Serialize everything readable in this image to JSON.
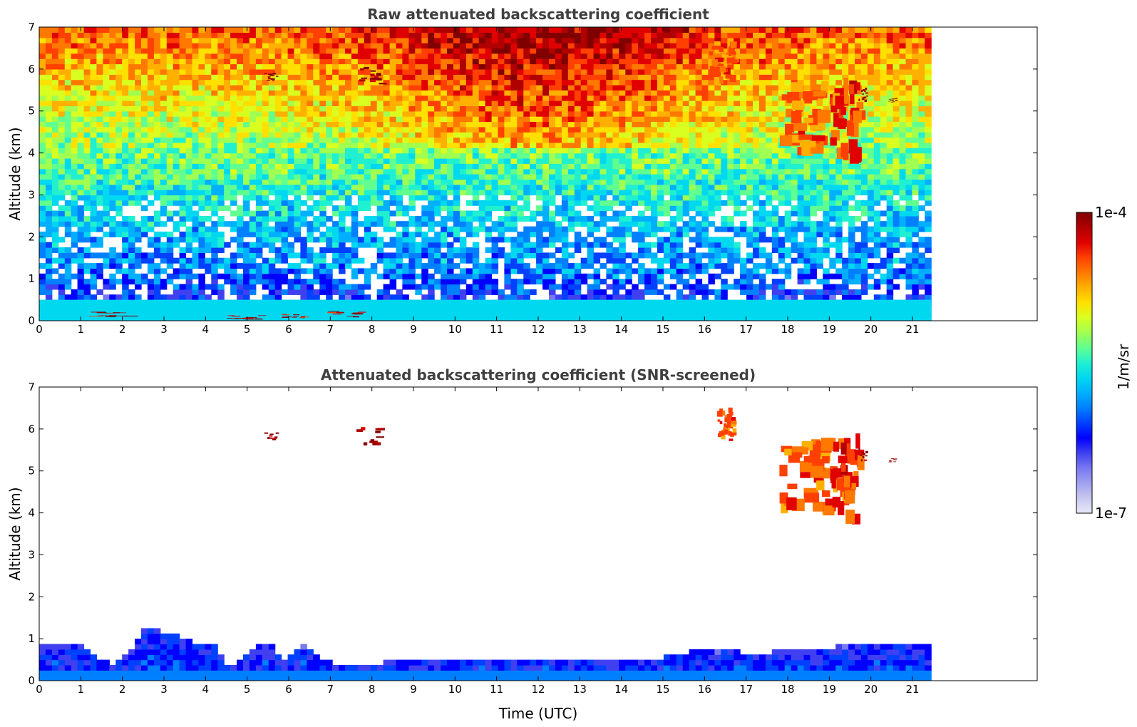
{
  "chart_data": [
    {
      "type": "heatmap",
      "title": "Raw attenuated backscattering coefficient",
      "xlabel": "",
      "ylabel": "Altitude (km)",
      "xlim": [
        0,
        24
      ],
      "ylim": [
        0,
        7
      ],
      "x_ticks": [
        0,
        1,
        2,
        3,
        4,
        5,
        6,
        7,
        8,
        9,
        10,
        11,
        12,
        13,
        14,
        15,
        16,
        17,
        18,
        19,
        20,
        21
      ],
      "y_ticks": [
        0,
        1,
        2,
        3,
        4,
        5,
        6,
        7
      ],
      "data_end_time": 21.45,
      "screened": false,
      "features": [
        {
          "kind": "boundary-layer",
          "x": [
            0,
            21.45
          ],
          "y": [
            0,
            0.5
          ],
          "value": 2e-06
        },
        {
          "kind": "low-cloud",
          "x": [
            1.1,
            2.1
          ],
          "y": [
            0.08,
            0.2
          ],
          "value": 8e-05
        },
        {
          "kind": "low-cloud",
          "x": [
            4.5,
            5.3
          ],
          "y": [
            0.02,
            0.12
          ],
          "value": 8e-05
        },
        {
          "kind": "low-cloud",
          "x": [
            5.7,
            6.3
          ],
          "y": [
            0.05,
            0.15
          ],
          "value": 8e-05
        },
        {
          "kind": "low-cloud",
          "x": [
            6.9,
            7.7
          ],
          "y": [
            0.08,
            0.22
          ],
          "value": 8e-05
        },
        {
          "kind": "cloud",
          "x": [
            7.6,
            8.2
          ],
          "y": [
            5.6,
            6.0
          ],
          "value": 9e-05
        },
        {
          "kind": "cloud",
          "x": [
            5.4,
            5.7
          ],
          "y": [
            5.7,
            5.9
          ],
          "value": 0.0001
        },
        {
          "kind": "cirrus",
          "x": [
            16.1,
            16.7
          ],
          "y": [
            5.6,
            6.6
          ],
          "value": 3e-05
        },
        {
          "kind": "cirrus",
          "x": [
            17.8,
            18.9
          ],
          "y": [
            3.9,
            5.5
          ],
          "value": 3e-05
        },
        {
          "kind": "cirrus",
          "x": [
            19.0,
            19.7
          ],
          "y": [
            3.7,
            5.6
          ],
          "value": 4e-05
        },
        {
          "kind": "cloud",
          "x": [
            19.7,
            19.9
          ],
          "y": [
            5.2,
            5.5
          ],
          "value": 0.0001
        },
        {
          "kind": "cloud",
          "x": [
            20.4,
            20.6
          ],
          "y": [
            5.2,
            5.3
          ],
          "value": 0.0001
        }
      ]
    },
    {
      "type": "heatmap",
      "title": "Attenuated backscattering coefficient (SNR-screened)",
      "xlabel": "Time (UTC)",
      "ylabel": "Altitude (km)",
      "xlim": [
        0,
        24
      ],
      "ylim": [
        0,
        7
      ],
      "x_ticks": [
        0,
        1,
        2,
        3,
        4,
        5,
        6,
        7,
        8,
        9,
        10,
        11,
        12,
        13,
        14,
        15,
        16,
        17,
        18,
        19,
        20,
        21
      ],
      "y_ticks": [
        0,
        1,
        2,
        3,
        4,
        5,
        6,
        7
      ],
      "data_end_time": 21.45,
      "screened": true,
      "boundary_layer_top_km": [
        [
          0,
          0.8
        ],
        [
          1,
          0.8
        ],
        [
          1.3,
          0.5
        ],
        [
          1.7,
          0.35
        ],
        [
          2.1,
          0.6
        ],
        [
          2.5,
          1.2
        ],
        [
          3,
          1.1
        ],
        [
          3.5,
          0.9
        ],
        [
          4.1,
          0.8
        ],
        [
          4.5,
          0.3
        ],
        [
          5,
          0.6
        ],
        [
          5.4,
          0.9
        ],
        [
          5.8,
          0.4
        ],
        [
          6.3,
          0.8
        ],
        [
          6.8,
          0.4
        ],
        [
          7.5,
          0.25
        ],
        [
          8,
          0.35
        ],
        [
          9,
          0.45
        ],
        [
          10,
          0.5
        ],
        [
          11,
          0.45
        ],
        [
          12,
          0.45
        ],
        [
          13,
          0.4
        ],
        [
          14,
          0.45
        ],
        [
          15,
          0.5
        ],
        [
          16,
          0.7
        ],
        [
          17,
          0.6
        ],
        [
          18,
          0.65
        ],
        [
          19,
          0.75
        ],
        [
          20,
          0.75
        ],
        [
          21.45,
          0.8
        ]
      ],
      "features": [
        {
          "kind": "cloud",
          "x": [
            7.6,
            8.2
          ],
          "y": [
            5.6,
            6.0
          ],
          "value": 9e-05
        },
        {
          "kind": "cloud",
          "x": [
            5.4,
            5.7
          ],
          "y": [
            5.7,
            5.9
          ],
          "value": 0.0001
        },
        {
          "kind": "cirrus",
          "x": [
            16.3,
            16.7
          ],
          "y": [
            5.7,
            6.4
          ],
          "value": 3e-05
        },
        {
          "kind": "cirrus",
          "x": [
            17.8,
            18.9
          ],
          "y": [
            3.9,
            5.5
          ],
          "value": 3e-05
        },
        {
          "kind": "cirrus",
          "x": [
            19.0,
            19.7
          ],
          "y": [
            3.7,
            5.6
          ],
          "value": 4e-05
        },
        {
          "kind": "cloud",
          "x": [
            19.7,
            19.9
          ],
          "y": [
            5.2,
            5.5
          ],
          "value": 0.0001
        },
        {
          "kind": "cloud",
          "x": [
            20.4,
            20.6
          ],
          "y": [
            5.2,
            5.3
          ],
          "value": 0.0001
        }
      ]
    }
  ],
  "colorbar": {
    "label": "1/m/sr",
    "max_label": "1e-4",
    "min_label": "1e-7",
    "range": [
      1e-07,
      0.0001
    ],
    "scale": "log",
    "colormap": "jet",
    "colors": [
      "#e8e8f8",
      "#c8c8f0",
      "#a0a0f0",
      "#7878f0",
      "#4040f0",
      "#0000ff",
      "#0040ff",
      "#0080ff",
      "#00b0ff",
      "#00d8f0",
      "#20f0d0",
      "#60ff90",
      "#a0ff50",
      "#d8ff20",
      "#ffe000",
      "#ffb000",
      "#ff7800",
      "#ff4000",
      "#e00000",
      "#b00000",
      "#800000"
    ]
  }
}
